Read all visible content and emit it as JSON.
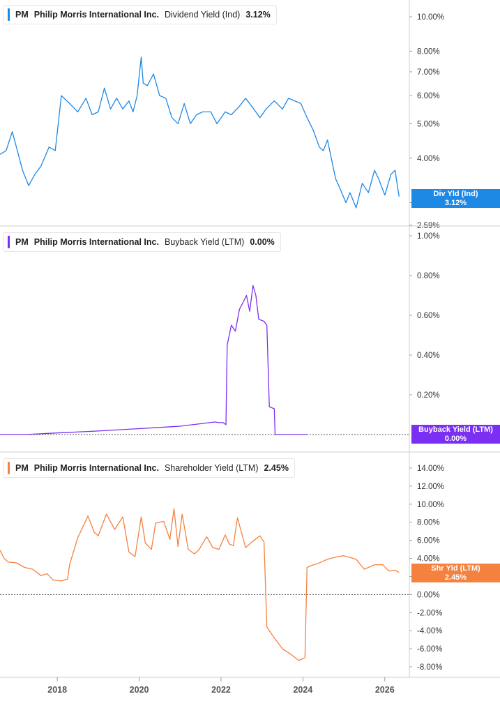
{
  "panels": [
    {
      "id": "dividend",
      "ticker": "PM",
      "company": "Philip Morris International Inc.",
      "metric": "Dividend Yield (Ind)",
      "value": "3.12%",
      "color": "#1e88e5",
      "badge": {
        "line1": "Div Yld (Ind)",
        "line2": "3.12%"
      }
    },
    {
      "id": "buyback",
      "ticker": "PM",
      "company": "Philip Morris International Inc.",
      "metric": "Buyback Yield (LTM)",
      "value": "0.00%",
      "color": "#7b2ff2",
      "badge": {
        "line1": "Buyback Yield (LTM)",
        "line2": "0.00%"
      }
    },
    {
      "id": "shareholder",
      "ticker": "PM",
      "company": "Philip Morris International Inc.",
      "metric": "Shareholder Yield (LTM)",
      "value": "2.45%",
      "color": "#f5813f",
      "badge": {
        "line1": "Shr Yld (LTM)",
        "line2": "2.45%"
      }
    }
  ],
  "chart_data": [
    {
      "type": "line",
      "title": "PM Philip Morris International Inc. Dividend Yield (Ind) 3.12%",
      "scale": "log",
      "y_ticks": [
        "10.00%",
        "8.00%",
        "7.00%",
        "6.00%",
        "5.00%",
        "4.00%",
        "3.00%",
        "2.59%"
      ],
      "y_tick_values": [
        10,
        8,
        7,
        6,
        5,
        4,
        3,
        2.59
      ],
      "ylim": [
        2.59,
        11.5
      ],
      "series": [
        {
          "name": "Div Yld (Ind)",
          "x": [
            2016.6,
            2016.75,
            2016.9,
            2017.0,
            2017.15,
            2017.3,
            2017.45,
            2017.6,
            2017.8,
            2017.95,
            2018.1,
            2018.3,
            2018.5,
            2018.7,
            2018.85,
            2019.0,
            2019.15,
            2019.3,
            2019.45,
            2019.6,
            2019.75,
            2019.85,
            2019.95,
            2020.05,
            2020.1,
            2020.2,
            2020.35,
            2020.5,
            2020.65,
            2020.8,
            2020.95,
            2021.1,
            2021.25,
            2021.4,
            2021.55,
            2021.75,
            2021.9,
            2022.1,
            2022.25,
            2022.45,
            2022.6,
            2022.8,
            2022.95,
            2023.1,
            2023.3,
            2023.5,
            2023.65,
            2023.8,
            2023.95,
            2024.1,
            2024.25,
            2024.4,
            2024.5,
            2024.6,
            2024.8,
            2024.9,
            2025.05,
            2025.15,
            2025.3,
            2025.45,
            2025.6,
            2025.75,
            2025.85,
            2026.0,
            2026.15,
            2026.25,
            2026.35
          ],
          "values": [
            4.1,
            4.2,
            4.75,
            4.3,
            3.7,
            3.35,
            3.6,
            3.8,
            4.3,
            4.2,
            6.0,
            5.7,
            5.4,
            5.9,
            5.3,
            5.4,
            6.3,
            5.5,
            5.9,
            5.5,
            5.8,
            5.4,
            6.0,
            7.7,
            6.5,
            6.4,
            6.9,
            6.0,
            5.9,
            5.2,
            5.0,
            5.7,
            5.0,
            5.3,
            5.4,
            5.4,
            5.0,
            5.4,
            5.3,
            5.6,
            5.9,
            5.5,
            5.2,
            5.5,
            5.8,
            5.5,
            5.9,
            5.8,
            5.7,
            5.2,
            4.8,
            4.3,
            4.2,
            4.5,
            3.5,
            3.3,
            3.0,
            3.2,
            2.9,
            3.4,
            3.2,
            3.7,
            3.5,
            3.15,
            3.6,
            3.7,
            3.12
          ]
        }
      ]
    },
    {
      "type": "line",
      "title": "PM Philip Morris International Inc. Buyback Yield (LTM) 0.00%",
      "y_ticks": [
        "1.00%",
        "0.80%",
        "0.60%",
        "0.40%",
        "0.20%"
      ],
      "y_tick_values": [
        1.0,
        0.8,
        0.6,
        0.4,
        0.2
      ],
      "ylim": [
        0.0,
        1.0
      ],
      "series": [
        {
          "name": "Buyback Yield (LTM)",
          "x": [
            2016.6,
            2017.2,
            2018.0,
            2019.0,
            2020.0,
            2021.0,
            2021.85,
            2021.95,
            2022.05,
            2022.12,
            2022.15,
            2022.25,
            2022.35,
            2022.45,
            2022.55,
            2022.62,
            2022.7,
            2022.78,
            2022.85,
            2022.92,
            2023.05,
            2023.12,
            2023.18,
            2023.3,
            2023.32,
            2023.4,
            2024.1
          ],
          "values": [
            0.0,
            0.0,
            0.008,
            0.018,
            0.03,
            0.042,
            0.063,
            0.06,
            0.06,
            0.05,
            0.45,
            0.55,
            0.52,
            0.63,
            0.67,
            0.7,
            0.62,
            0.75,
            0.7,
            0.58,
            0.57,
            0.55,
            0.14,
            0.13,
            0.0,
            0.0,
            0.0
          ]
        }
      ]
    },
    {
      "type": "line",
      "title": "PM Philip Morris International Inc. Shareholder Yield (LTM) 2.45%",
      "y_ticks": [
        "14.00%",
        "12.00%",
        "10.00%",
        "8.00%",
        "6.00%",
        "4.00%",
        "2.00%",
        "0.00%",
        "-2.00%",
        "-4.00%",
        "-6.00%",
        "-8.00%"
      ],
      "y_tick_values": [
        14,
        12,
        10,
        8,
        6,
        4,
        2,
        0,
        -2,
        -4,
        -6,
        -8
      ],
      "ylim": [
        -9.0,
        15.0
      ],
      "series": [
        {
          "name": "Shr Yld (LTM)",
          "x": [
            2016.6,
            2016.7,
            2016.8,
            2017.0,
            2017.2,
            2017.4,
            2017.6,
            2017.75,
            2017.9,
            2018.1,
            2018.25,
            2018.3,
            2018.5,
            2018.75,
            2018.9,
            2019.0,
            2019.2,
            2019.4,
            2019.6,
            2019.75,
            2019.9,
            2020.05,
            2020.15,
            2020.3,
            2020.4,
            2020.6,
            2020.75,
            2020.85,
            2020.95,
            2021.05,
            2021.2,
            2021.35,
            2021.45,
            2021.65,
            2021.8,
            2021.95,
            2022.1,
            2022.2,
            2022.3,
            2022.4,
            2022.6,
            2022.75,
            2022.95,
            2023.05,
            2023.12,
            2023.3,
            2023.5,
            2023.7,
            2023.9,
            2024.05,
            2024.1,
            2024.2,
            2024.35,
            2024.6,
            2024.85,
            2025.0,
            2025.3,
            2025.5,
            2025.75,
            2025.95,
            2026.1,
            2026.25,
            2026.35
          ],
          "values": [
            4.9,
            4.0,
            3.6,
            3.5,
            3.0,
            2.8,
            2.1,
            2.3,
            1.6,
            1.5,
            1.7,
            3.3,
            6.3,
            8.7,
            6.9,
            6.5,
            8.9,
            7.2,
            8.6,
            4.7,
            4.2,
            8.6,
            5.7,
            5.0,
            7.9,
            8.1,
            6.1,
            9.5,
            5.3,
            8.9,
            5.0,
            4.5,
            4.9,
            6.4,
            5.2,
            5.0,
            6.6,
            5.6,
            5.4,
            8.5,
            5.2,
            5.8,
            6.5,
            5.8,
            -3.6,
            -4.8,
            -6.0,
            -6.6,
            -7.3,
            -7.0,
            3.0,
            3.2,
            3.4,
            3.9,
            4.2,
            4.3,
            3.9,
            2.8,
            3.3,
            3.3,
            2.6,
            2.7,
            2.45
          ]
        }
      ]
    }
  ],
  "x_axis": {
    "ticks": [
      "2018",
      "2020",
      "2022",
      "2024",
      "2026"
    ],
    "tick_values": [
      2018,
      2020,
      2022,
      2024,
      2026
    ]
  }
}
